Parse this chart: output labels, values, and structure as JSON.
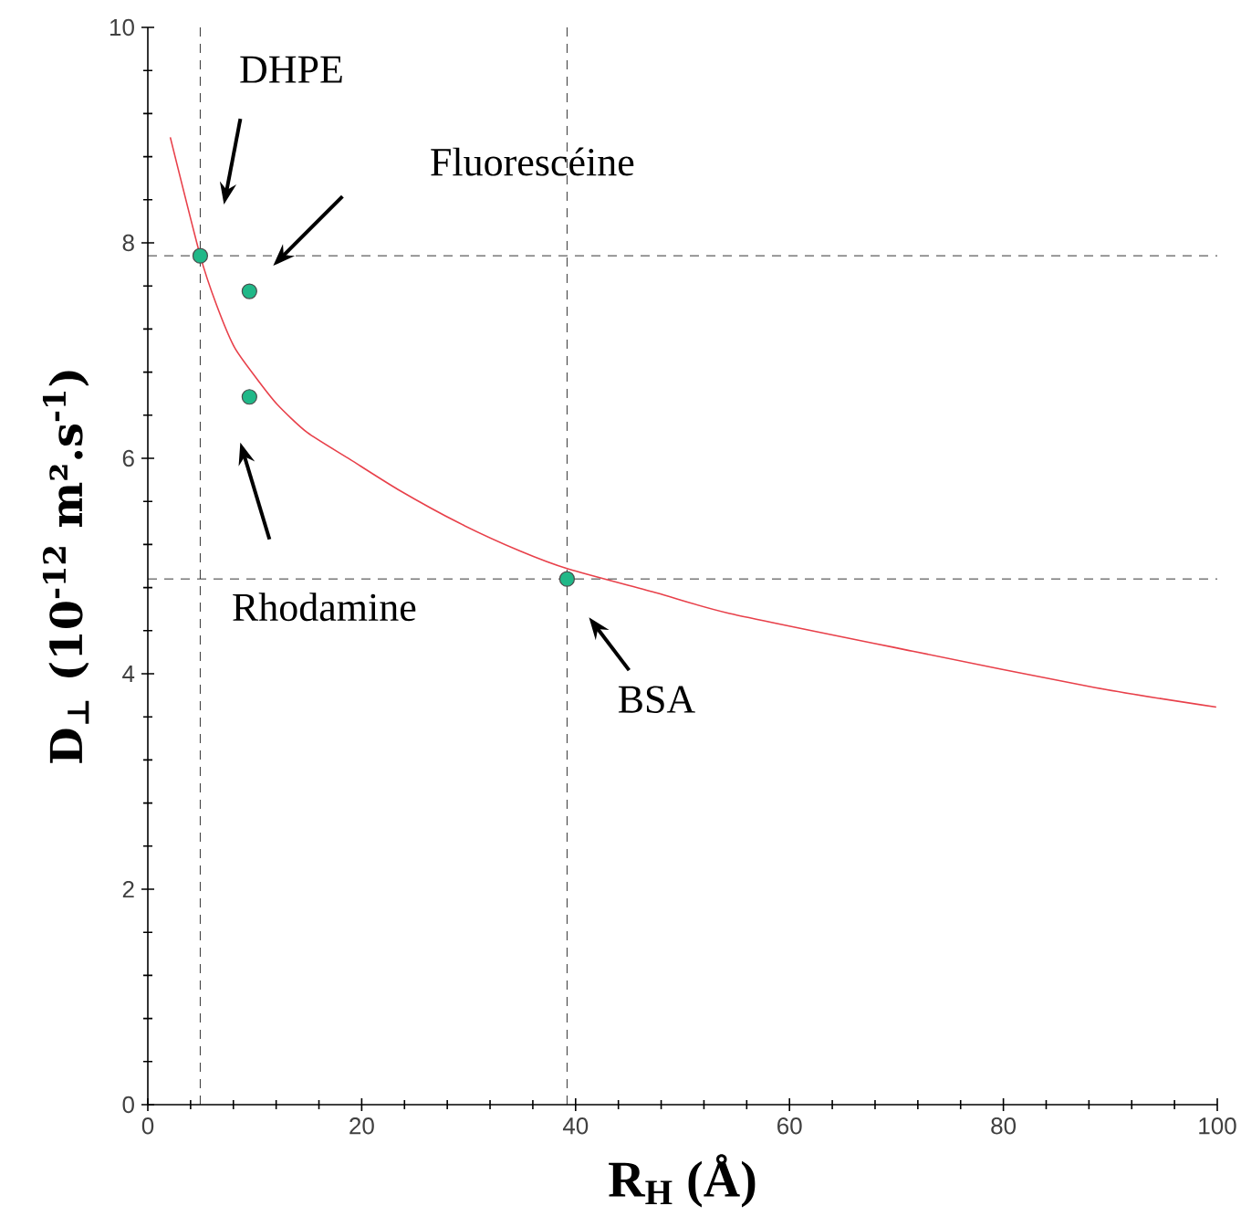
{
  "chart_data": {
    "type": "scatter",
    "xlabel": "R$_{H}$ (Å)",
    "ylabel": "D$_{⊥}$ (10$^{-12}$ m².s$^{-1}$)",
    "xlim": [
      0,
      100
    ],
    "ylim": [
      0,
      10
    ],
    "xticks": [
      0,
      20,
      40,
      60,
      80,
      100
    ],
    "yticks": [
      0,
      2,
      4,
      6,
      8,
      10
    ],
    "grid": false,
    "series": [
      {
        "type": "line",
        "marker": "none",
        "color": "#e8404a",
        "line_style": "solid",
        "x": [
          2.1,
          4.9,
          6.4,
          8.1,
          10.1,
          12.1,
          14.9,
          18.9,
          23.4,
          29.1,
          34.8,
          39.4,
          47.6,
          54.4,
          71.5,
          88.6,
          99.9
        ],
        "values": [
          8.98,
          7.88,
          7.43,
          7.03,
          6.75,
          6.5,
          6.24,
          5.99,
          5.71,
          5.4,
          5.14,
          4.97,
          4.75,
          4.56,
          4.21,
          3.87,
          3.69
        ]
      },
      {
        "color": "#20b888",
        "marker": "circle",
        "x": [
          4.9,
          9.5,
          9.5,
          39.2
        ],
        "values": [
          7.88,
          7.55,
          6.57,
          4.88
        ]
      }
    ],
    "ref_lines": [
      {
        "axis": "x",
        "value": 4.9,
        "color": "#000000",
        "line_style": "dashed"
      },
      {
        "axis": "x",
        "value": 39.2,
        "color": "#000000",
        "line_style": "dashed"
      },
      {
        "axis": "y",
        "value": 7.88,
        "color": "#000000",
        "line_style": "dashed"
      },
      {
        "axis": "y",
        "value": 4.88,
        "color": "#000000",
        "line_style": "dashed"
      }
    ],
    "annotations": [
      "DHPE",
      "Fluorescéine",
      "Rhodamine",
      "BSA"
    ]
  }
}
